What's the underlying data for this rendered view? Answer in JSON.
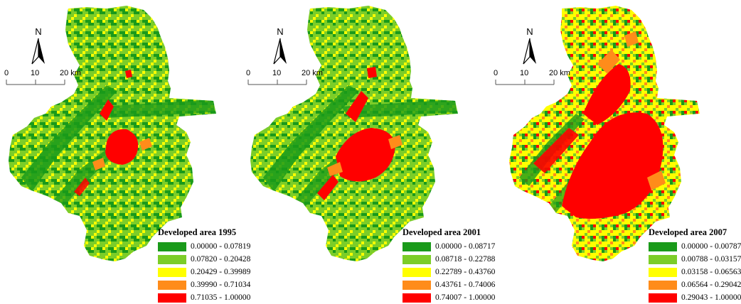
{
  "panels": [
    {
      "id": "p1995",
      "north_label": "N",
      "scale_labels": [
        "0",
        "10",
        "20 km"
      ],
      "legend_title": "Developed area 1995",
      "legend": [
        {
          "range": "0.00000 - 0.07819",
          "color": "#1a9a1a"
        },
        {
          "range": "0.07820 - 0.20428",
          "color": "#7ccd28"
        },
        {
          "range": "0.20429 - 0.39989",
          "color": "#ffff00"
        },
        {
          "range": "0.39990 - 0.71034",
          "color": "#ff8c1a"
        },
        {
          "range": "0.71035 - 1.00000",
          "color": "#ff0000"
        }
      ]
    },
    {
      "id": "p2001",
      "north_label": "N",
      "scale_labels": [
        "0",
        "10",
        "20 km"
      ],
      "legend_title": "Developed area 2001",
      "legend": [
        {
          "range": "0.00000 - 0.08717",
          "color": "#1a9a1a"
        },
        {
          "range": "0.08718 - 0.22788",
          "color": "#7ccd28"
        },
        {
          "range": "0.22789 - 0.43760",
          "color": "#ffff00"
        },
        {
          "range": "0.43761 - 0.74006",
          "color": "#ff8c1a"
        },
        {
          "range": "0.74007 - 1.00000",
          "color": "#ff0000"
        }
      ]
    },
    {
      "id": "p2007",
      "north_label": "N",
      "scale_labels": [
        "0",
        "10",
        "20 km"
      ],
      "legend_title": "Developed area 2007",
      "legend": [
        {
          "range": "0.00000 - 0.00787",
          "color": "#1a9a1a"
        },
        {
          "range": "0.00788 - 0.03157",
          "color": "#7ccd28"
        },
        {
          "range": "0.03158 - 0.06563",
          "color": "#ffff00"
        },
        {
          "range": "0.06564 - 0.29042",
          "color": "#ff8c1a"
        },
        {
          "range": "0.29043 - 1.00000",
          "color": "#ff0000"
        }
      ]
    }
  ]
}
